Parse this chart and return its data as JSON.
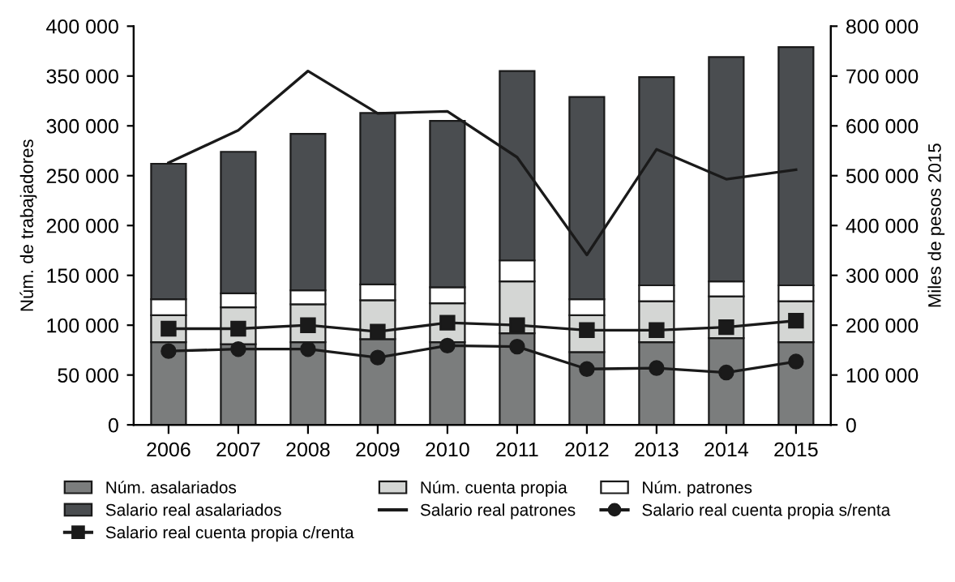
{
  "chart_data": {
    "type": "bar",
    "stacked": true,
    "ylabel": "Núm. de trabajadores",
    "y2label": "Miles de pesos 2015",
    "categories": [
      "2006",
      "2007",
      "2008",
      "2009",
      "2010",
      "2011",
      "2012",
      "2013",
      "2014",
      "2015"
    ],
    "series": [
      {
        "name": "Núm. asalariados",
        "color": "#7b7d7d",
        "values": [
          83000,
          81000,
          83000,
          86000,
          83000,
          92000,
          73000,
          83000,
          87000,
          83000
        ]
      },
      {
        "name": "Núm. cuenta propia",
        "color": "#d4d6d4",
        "values": [
          27000,
          37000,
          38000,
          39000,
          39000,
          52000,
          37000,
          41000,
          42000,
          41000
        ]
      },
      {
        "name": "Núm. patrones",
        "color": "#ffffff",
        "values": [
          16000,
          14000,
          14000,
          16000,
          16000,
          21000,
          16000,
          16000,
          15000,
          16000
        ]
      },
      {
        "name": "Salario real asalariados",
        "color": "#4a4d50",
        "values": [
          136000,
          142000,
          157000,
          172000,
          167000,
          190000,
          203000,
          209000,
          225000,
          239000
        ]
      },
      {
        "name": "Salario real patrones",
        "type": "line",
        "axis": "y2",
        "color": "#1a1a1a",
        "marker": "none",
        "values": [
          526000,
          591000,
          710000,
          625000,
          629000,
          537000,
          341000,
          553000,
          493000,
          512000
        ]
      },
      {
        "name": "Salario real cuenta propia s/renta",
        "type": "line",
        "axis": "y2",
        "color": "#1a1a1a",
        "marker": "circle",
        "values": [
          148000,
          152000,
          152000,
          135000,
          159000,
          157000,
          112000,
          114000,
          105000,
          127000
        ]
      },
      {
        "name": "Salario real cuenta propia c/renta",
        "type": "line",
        "axis": "y2",
        "color": "#1a1a1a",
        "marker": "square",
        "values": [
          193000,
          193000,
          200000,
          187000,
          205000,
          200000,
          190000,
          190000,
          196000,
          209000
        ]
      }
    ],
    "ylim": [
      0,
      400000
    ],
    "yticks": [
      {
        "value": 0,
        "label": "0"
      },
      {
        "value": 50000,
        "label": "50 000"
      },
      {
        "value": 100000,
        "label": "100 000"
      },
      {
        "value": 150000,
        "label": "150 000"
      },
      {
        "value": 200000,
        "label": "200 000"
      },
      {
        "value": 250000,
        "label": "250 000"
      },
      {
        "value": 300000,
        "label": "300 000"
      },
      {
        "value": 350000,
        "label": "350 000"
      },
      {
        "value": 400000,
        "label": "400 000"
      }
    ],
    "y2lim": [
      0,
      800000
    ],
    "y2ticks": [
      {
        "value": 0,
        "label": "0"
      },
      {
        "value": 100000,
        "label": "100 000"
      },
      {
        "value": 200000,
        "label": "200 000"
      },
      {
        "value": 300000,
        "label": "300 000"
      },
      {
        "value": 400000,
        "label": "400 000"
      },
      {
        "value": 500000,
        "label": "500 000"
      },
      {
        "value": 600000,
        "label": "600 000"
      },
      {
        "value": 700000,
        "label": "700 000"
      },
      {
        "value": 800000,
        "label": "800 000"
      }
    ],
    "legend": "bottom",
    "grid": false
  }
}
